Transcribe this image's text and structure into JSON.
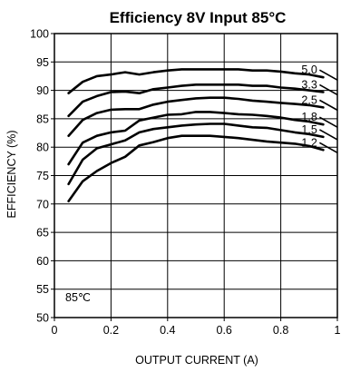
{
  "chart_data": {
    "type": "line",
    "title": "Efficiency 8V Input 85°C",
    "xlabel": "OUTPUT CURRENT (A)",
    "ylabel": "EFFICIENCY (%)",
    "annotation": "85℃",
    "xlim": [
      0,
      1
    ],
    "ylim": [
      50,
      100
    ],
    "x_ticks": [
      0,
      0.2,
      0.4,
      0.6,
      0.8,
      1
    ],
    "x_tick_labels": [
      "0",
      "0.2",
      "0.4",
      "0.6",
      "0.8",
      "1"
    ],
    "y_ticks": [
      50,
      55,
      60,
      65,
      70,
      75,
      80,
      85,
      90,
      95,
      100
    ],
    "y_tick_labels": [
      "50",
      "55",
      "60",
      "65",
      "70",
      "75",
      "80",
      "85",
      "90",
      "95",
      "100"
    ],
    "grid": true,
    "series": [
      {
        "name": "5.0",
        "x": [
          0.05,
          0.1,
          0.15,
          0.2,
          0.25,
          0.3,
          0.35,
          0.4,
          0.45,
          0.5,
          0.55,
          0.6,
          0.65,
          0.7,
          0.75,
          0.8,
          0.85,
          0.9,
          0.95
        ],
        "values": [
          89.5,
          91.5,
          92.5,
          92.8,
          93.2,
          92.8,
          93.2,
          93.5,
          93.7,
          93.7,
          93.7,
          93.7,
          93.7,
          93.5,
          93.5,
          93.3,
          93.0,
          92.8,
          92.3
        ]
      },
      {
        "name": "3.3",
        "x": [
          0.05,
          0.1,
          0.15,
          0.2,
          0.25,
          0.3,
          0.35,
          0.4,
          0.45,
          0.5,
          0.55,
          0.6,
          0.65,
          0.7,
          0.75,
          0.8,
          0.85,
          0.9,
          0.95
        ],
        "values": [
          85.5,
          88.0,
          89.0,
          89.7,
          89.8,
          89.5,
          90.2,
          90.5,
          90.8,
          91.0,
          91.0,
          91.0,
          91.0,
          90.8,
          90.8,
          90.5,
          90.3,
          90.0,
          89.7
        ]
      },
      {
        "name": "2.5",
        "x": [
          0.05,
          0.1,
          0.15,
          0.2,
          0.25,
          0.3,
          0.35,
          0.4,
          0.45,
          0.5,
          0.55,
          0.6,
          0.65,
          0.7,
          0.75,
          0.8,
          0.85,
          0.9,
          0.95
        ],
        "values": [
          82.0,
          84.8,
          86.0,
          86.6,
          86.7,
          86.7,
          87.5,
          88.0,
          88.3,
          88.6,
          88.7,
          88.7,
          88.5,
          88.2,
          88.0,
          87.8,
          87.6,
          87.4,
          87.0
        ]
      },
      {
        "name": "1.8",
        "x": [
          0.05,
          0.1,
          0.15,
          0.2,
          0.25,
          0.3,
          0.35,
          0.4,
          0.45,
          0.5,
          0.55,
          0.6,
          0.65,
          0.7,
          0.75,
          0.8,
          0.85,
          0.9,
          0.95
        ],
        "values": [
          77.0,
          80.8,
          82.0,
          82.6,
          82.9,
          84.7,
          85.2,
          85.7,
          85.8,
          86.2,
          86.2,
          86.0,
          85.8,
          85.7,
          85.5,
          85.2,
          84.8,
          84.5,
          84.0
        ]
      },
      {
        "name": "1.5",
        "x": [
          0.05,
          0.1,
          0.15,
          0.2,
          0.25,
          0.3,
          0.35,
          0.4,
          0.45,
          0.5,
          0.55,
          0.6,
          0.65,
          0.7,
          0.75,
          0.8,
          0.85,
          0.9,
          0.95
        ],
        "values": [
          73.5,
          77.8,
          79.8,
          80.5,
          81.2,
          82.6,
          83.2,
          83.5,
          83.8,
          84.0,
          84.1,
          84.1,
          83.8,
          83.5,
          83.4,
          83.0,
          82.6,
          82.3,
          81.8
        ]
      },
      {
        "name": "1.2",
        "x": [
          0.05,
          0.1,
          0.15,
          0.2,
          0.25,
          0.3,
          0.35,
          0.4,
          0.45,
          0.5,
          0.55,
          0.6,
          0.65,
          0.7,
          0.75,
          0.8,
          0.85,
          0.9,
          0.95
        ],
        "values": [
          70.5,
          74.0,
          75.8,
          77.2,
          78.3,
          80.3,
          80.9,
          81.6,
          82.0,
          82.0,
          82.0,
          81.8,
          81.6,
          81.3,
          81.0,
          80.8,
          80.6,
          80.2,
          79.5
        ]
      }
    ]
  }
}
